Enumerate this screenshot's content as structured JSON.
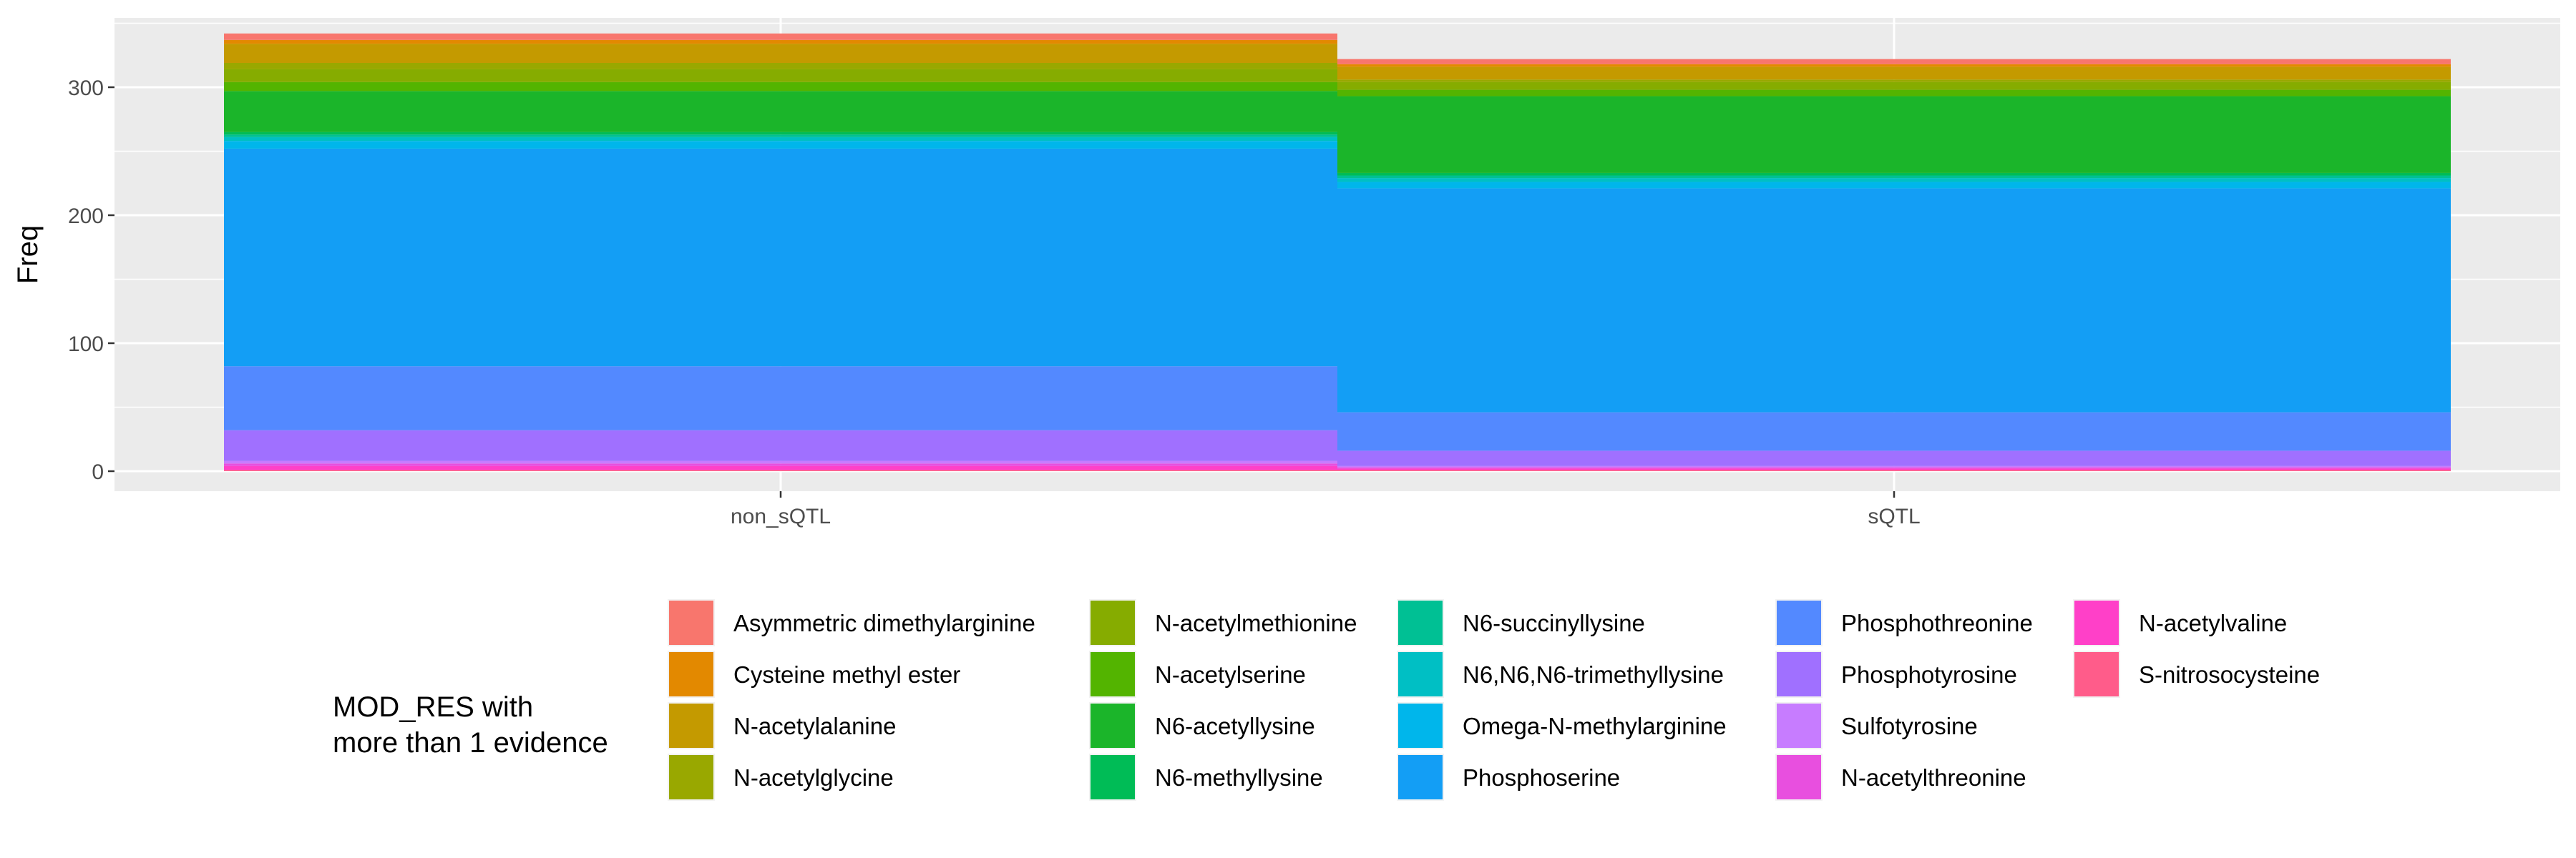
{
  "chart_data": {
    "type": "bar",
    "stacked": true,
    "categories": [
      "non_sQTL",
      "sQTL"
    ],
    "ylabel": "Freq",
    "xlabel": "",
    "ylim": [
      0,
      350
    ],
    "yticks": [
      0,
      100,
      200,
      300
    ],
    "grid": true,
    "legend": {
      "position": "bottom",
      "title_lines": [
        "MOD_RES with",
        "more than 1 evidence"
      ]
    },
    "series": [
      {
        "name": "Asymmetric dimethylarginine",
        "color": "#F8766D",
        "values": [
          5,
          4
        ]
      },
      {
        "name": "Cysteine methyl ester",
        "color": "#E38900",
        "values": [
          3,
          2
        ]
      },
      {
        "name": "N-acetylalanine",
        "color": "#C49A00",
        "values": [
          15,
          10
        ]
      },
      {
        "name": "N-acetylglycine",
        "color": "#99A800",
        "values": [
          5,
          2
        ]
      },
      {
        "name": "N-acetylmethionine",
        "color": "#86AC00",
        "values": [
          10,
          6
        ]
      },
      {
        "name": "N-acetylserine",
        "color": "#53B400",
        "values": [
          7,
          5
        ]
      },
      {
        "name": "N6-acetyllysine",
        "color": "#1BB52A",
        "values": [
          32,
          60
        ]
      },
      {
        "name": "N6-methyllysine",
        "color": "#00BC56",
        "values": [
          2,
          2
        ]
      },
      {
        "name": "N6-succinyllysine",
        "color": "#00C094",
        "values": [
          2,
          2
        ]
      },
      {
        "name": "N6,N6,N6-trimethyllysine",
        "color": "#00BFC4",
        "values": [
          3,
          3
        ]
      },
      {
        "name": "Omega-N-methylarginine",
        "color": "#00B6EB",
        "values": [
          6,
          5
        ]
      },
      {
        "name": "Phosphoserine",
        "color": "#139EF5",
        "values": [
          170,
          175
        ]
      },
      {
        "name": "Phosphothreonine",
        "color": "#5389FF",
        "values": [
          50,
          30
        ]
      },
      {
        "name": "Phosphotyrosine",
        "color": "#A070FF",
        "values": [
          24,
          12
        ]
      },
      {
        "name": "Sulfotyrosine",
        "color": "#C77CFF",
        "values": [
          2,
          1
        ]
      },
      {
        "name": "N-acetylthreonine",
        "color": "#E84FDF",
        "values": [
          2,
          1
        ]
      },
      {
        "name": "N-acetylvaline",
        "color": "#FF40C8",
        "values": [
          3,
          1
        ]
      },
      {
        "name": "S-nitrosocysteine",
        "color": "#FF5C8A",
        "values": [
          1,
          1
        ]
      }
    ]
  }
}
